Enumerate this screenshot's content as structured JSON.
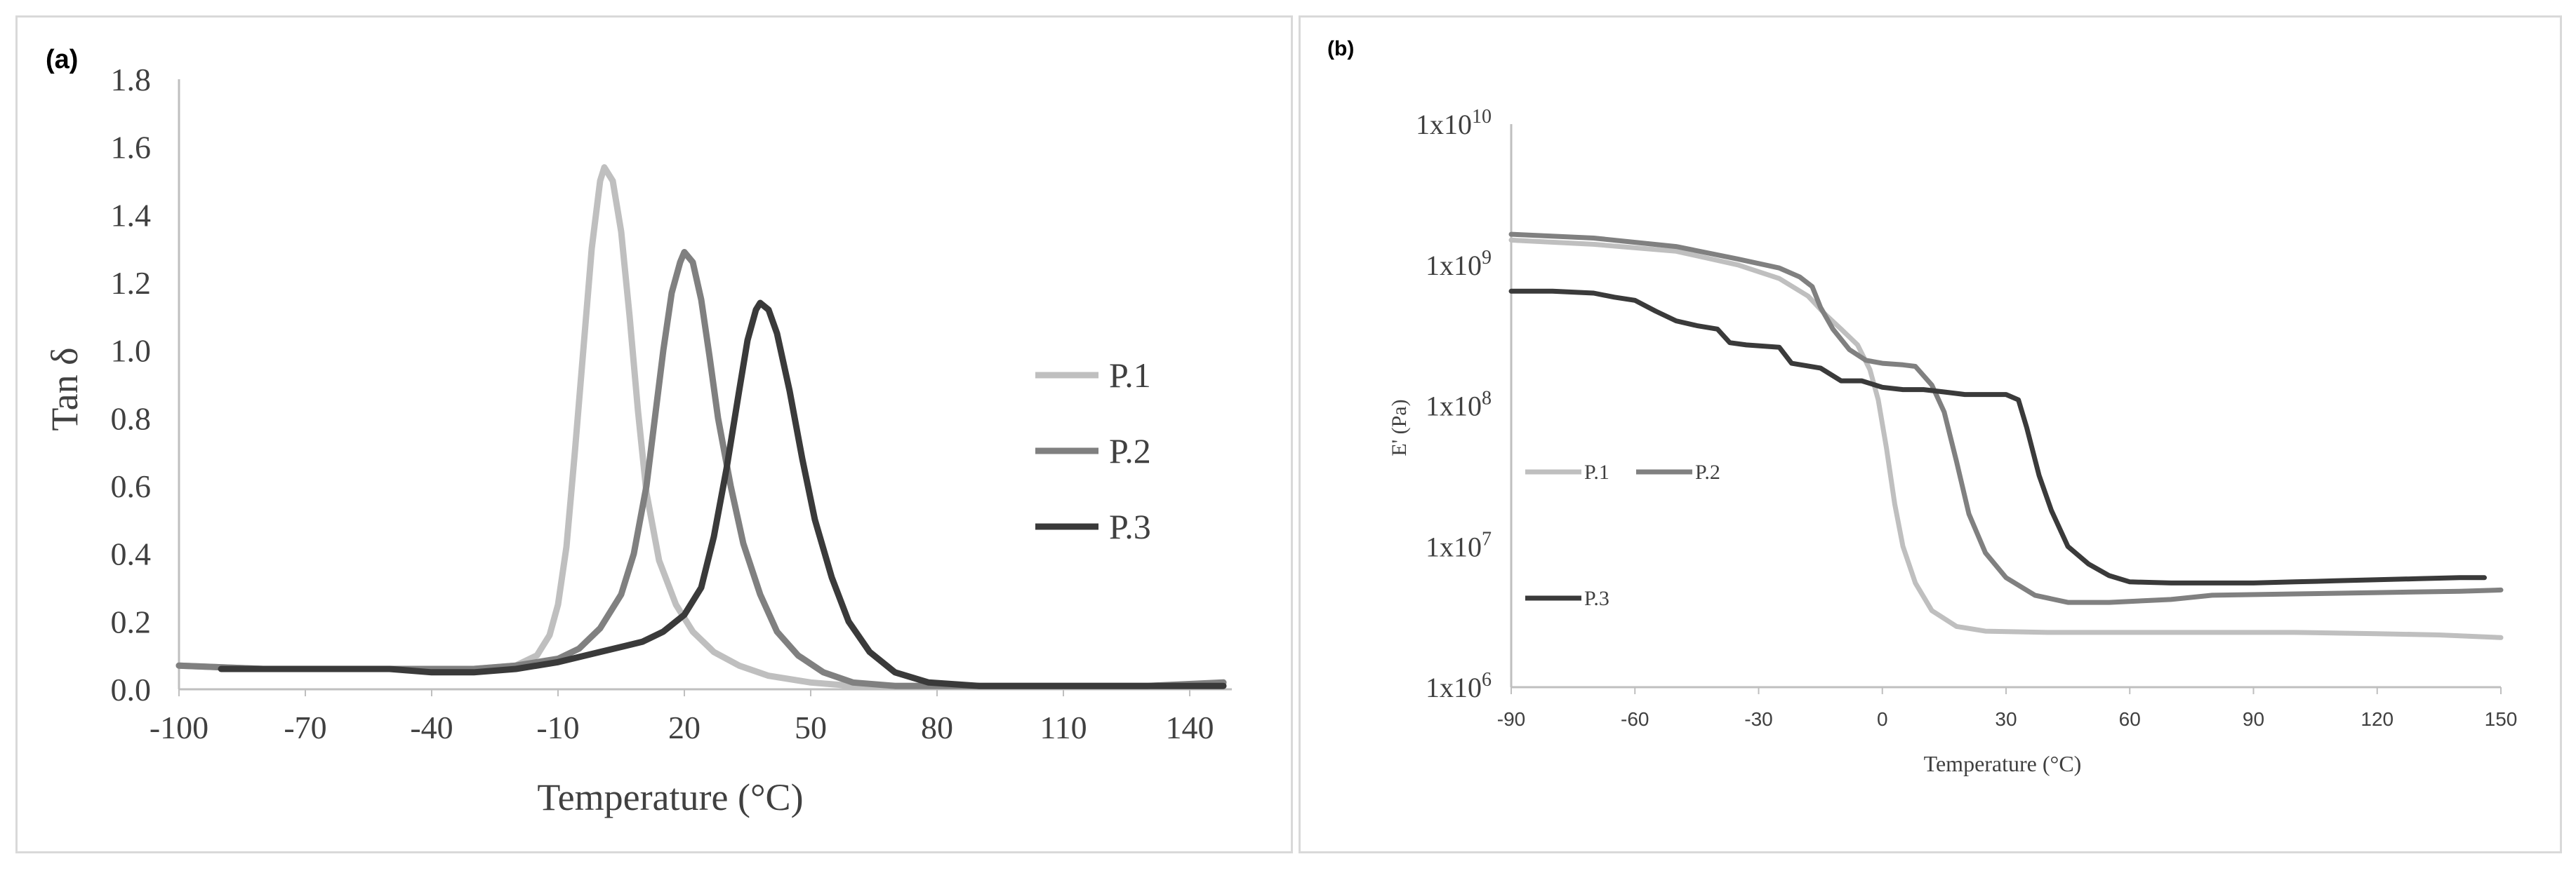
{
  "chart_data": [
    {
      "type": "line",
      "panel_label": "(a)",
      "xlabel": "Temperature (°C)",
      "ylabel": "Tan δ",
      "xlim": [
        -100,
        150
      ],
      "ylim": [
        0,
        1.8
      ],
      "x_ticks": [
        "-100",
        "-70",
        "-40",
        "-10",
        "20",
        "50",
        "80",
        "110",
        "140"
      ],
      "x_tick_values": [
        -100,
        -70,
        -40,
        -10,
        20,
        50,
        80,
        110,
        140
      ],
      "y_ticks": [
        "0.0",
        "0.2",
        "0.4",
        "0.6",
        "0.8",
        "1.0",
        "1.2",
        "1.4",
        "1.6",
        "1.8"
      ],
      "y_tick_values": [
        0,
        0.2,
        0.4,
        0.6,
        0.8,
        1.0,
        1.2,
        1.4,
        1.6,
        1.8
      ],
      "grid": false,
      "legend_position": "right",
      "series": [
        {
          "name": "P.1",
          "color": "#bfbfbf",
          "points": [
            [
              -100,
              0.07
            ],
            [
              -80,
              0.06
            ],
            [
              -60,
              0.06
            ],
            [
              -40,
              0.06
            ],
            [
              -30,
              0.06
            ],
            [
              -20,
              0.07
            ],
            [
              -15,
              0.1
            ],
            [
              -12,
              0.16
            ],
            [
              -10,
              0.25
            ],
            [
              -8,
              0.42
            ],
            [
              -6,
              0.7
            ],
            [
              -4,
              1.0
            ],
            [
              -2,
              1.3
            ],
            [
              0,
              1.5
            ],
            [
              1,
              1.54
            ],
            [
              3,
              1.5
            ],
            [
              5,
              1.35
            ],
            [
              7,
              1.1
            ],
            [
              9,
              0.82
            ],
            [
              11,
              0.58
            ],
            [
              14,
              0.38
            ],
            [
              18,
              0.25
            ],
            [
              22,
              0.17
            ],
            [
              27,
              0.11
            ],
            [
              33,
              0.07
            ],
            [
              40,
              0.04
            ],
            [
              50,
              0.02
            ],
            [
              60,
              0.01
            ],
            [
              80,
              0.01
            ],
            [
              100,
              0.01
            ],
            [
              120,
              0.01
            ],
            [
              140,
              0.01
            ],
            [
              148,
              0.02
            ]
          ]
        },
        {
          "name": "P.2",
          "color": "#808080",
          "points": [
            [
              -100,
              0.07
            ],
            [
              -80,
              0.06
            ],
            [
              -60,
              0.06
            ],
            [
              -40,
              0.06
            ],
            [
              -30,
              0.06
            ],
            [
              -20,
              0.07
            ],
            [
              -10,
              0.09
            ],
            [
              -5,
              0.12
            ],
            [
              0,
              0.18
            ],
            [
              5,
              0.28
            ],
            [
              8,
              0.4
            ],
            [
              11,
              0.6
            ],
            [
              13,
              0.8
            ],
            [
              15,
              1.0
            ],
            [
              17,
              1.17
            ],
            [
              19,
              1.26
            ],
            [
              20,
              1.29
            ],
            [
              22,
              1.26
            ],
            [
              24,
              1.15
            ],
            [
              26,
              0.98
            ],
            [
              28,
              0.8
            ],
            [
              31,
              0.6
            ],
            [
              34,
              0.43
            ],
            [
              38,
              0.28
            ],
            [
              42,
              0.17
            ],
            [
              47,
              0.1
            ],
            [
              53,
              0.05
            ],
            [
              60,
              0.02
            ],
            [
              70,
              0.01
            ],
            [
              90,
              0.01
            ],
            [
              110,
              0.01
            ],
            [
              130,
              0.01
            ],
            [
              148,
              0.02
            ]
          ]
        },
        {
          "name": "P.3",
          "color": "#3a3a3a",
          "points": [
            [
              -90,
              0.06
            ],
            [
              -70,
              0.06
            ],
            [
              -50,
              0.06
            ],
            [
              -40,
              0.05
            ],
            [
              -35,
              0.05
            ],
            [
              -30,
              0.05
            ],
            [
              -20,
              0.06
            ],
            [
              -10,
              0.08
            ],
            [
              0,
              0.11
            ],
            [
              10,
              0.14
            ],
            [
              15,
              0.17
            ],
            [
              20,
              0.22
            ],
            [
              24,
              0.3
            ],
            [
              27,
              0.45
            ],
            [
              30,
              0.65
            ],
            [
              33,
              0.88
            ],
            [
              35,
              1.03
            ],
            [
              37,
              1.12
            ],
            [
              38,
              1.14
            ],
            [
              40,
              1.12
            ],
            [
              42,
              1.05
            ],
            [
              45,
              0.88
            ],
            [
              48,
              0.68
            ],
            [
              51,
              0.5
            ],
            [
              55,
              0.33
            ],
            [
              59,
              0.2
            ],
            [
              64,
              0.11
            ],
            [
              70,
              0.05
            ],
            [
              78,
              0.02
            ],
            [
              90,
              0.01
            ],
            [
              110,
              0.01
            ],
            [
              130,
              0.01
            ],
            [
              148,
              0.01
            ]
          ]
        }
      ]
    },
    {
      "type": "line",
      "panel_label": "(b)",
      "xlabel": "Temperature (°C)",
      "ylabel": "E' (Pa)",
      "yscale": "log",
      "xlim": [
        -90,
        150
      ],
      "ylim": [
        1000000,
        10000000000
      ],
      "x_ticks": [
        "-90",
        "-60",
        "-30",
        "0",
        "30",
        "60",
        "90",
        "120",
        "150"
      ],
      "x_tick_values": [
        -90,
        -60,
        -30,
        0,
        30,
        60,
        90,
        120,
        150
      ],
      "y_ticks": [
        {
          "base": "1x10",
          "exp": "6",
          "value": 1000000
        },
        {
          "base": "1x10",
          "exp": "7",
          "value": 10000000
        },
        {
          "base": "1x10",
          "exp": "8",
          "value": 100000000
        },
        {
          "base": "1x10",
          "exp": "9",
          "value": 1000000000
        },
        {
          "base": "1x10",
          "exp": "10",
          "value": 10000000000
        }
      ],
      "grid": false,
      "legend_position": "left",
      "series": [
        {
          "name": "P.1",
          "color": "#bfbfbf",
          "points": [
            [
              -90,
              1500000000
            ],
            [
              -70,
              1400000000
            ],
            [
              -50,
              1250000000
            ],
            [
              -35,
              1000000000
            ],
            [
              -25,
              800000000
            ],
            [
              -18,
              600000000
            ],
            [
              -14,
              450000000
            ],
            [
              -10,
              350000000
            ],
            [
              -6,
              270000000
            ],
            [
              -3,
              180000000
            ],
            [
              -1,
              110000000
            ],
            [
              1,
              50000000
            ],
            [
              3,
              20000000
            ],
            [
              5,
              10000000
            ],
            [
              8,
              5500000
            ],
            [
              12,
              3500000
            ],
            [
              18,
              2700000
            ],
            [
              25,
              2500000
            ],
            [
              40,
              2450000
            ],
            [
              60,
              2450000
            ],
            [
              80,
              2450000
            ],
            [
              100,
              2450000
            ],
            [
              120,
              2400000
            ],
            [
              135,
              2350000
            ],
            [
              150,
              2250000
            ]
          ]
        },
        {
          "name": "P.2",
          "color": "#808080",
          "points": [
            [
              -90,
              1650000000
            ],
            [
              -70,
              1550000000
            ],
            [
              -50,
              1350000000
            ],
            [
              -35,
              1100000000
            ],
            [
              -25,
              950000000
            ],
            [
              -20,
              820000000
            ],
            [
              -17,
              700000000
            ],
            [
              -15,
              500000000
            ],
            [
              -12,
              350000000
            ],
            [
              -8,
              250000000
            ],
            [
              -4,
              210000000
            ],
            [
              0,
              200000000
            ],
            [
              5,
              195000000
            ],
            [
              8,
              190000000
            ],
            [
              12,
              140000000
            ],
            [
              15,
              90000000
            ],
            [
              18,
              40000000
            ],
            [
              21,
              17000000
            ],
            [
              25,
              9000000
            ],
            [
              30,
              6000000
            ],
            [
              37,
              4500000
            ],
            [
              45,
              4000000
            ],
            [
              55,
              4000000
            ],
            [
              70,
              4200000
            ],
            [
              80,
              4500000
            ],
            [
              100,
              4600000
            ],
            [
              120,
              4700000
            ],
            [
              140,
              4800000
            ],
            [
              150,
              4900000
            ]
          ]
        },
        {
          "name": "P.3",
          "color": "#3a3a3a",
          "points": [
            [
              -90,
              650000000
            ],
            [
              -80,
              650000000
            ],
            [
              -70,
              630000000
            ],
            [
              -65,
              590000000
            ],
            [
              -60,
              560000000
            ],
            [
              -55,
              470000000
            ],
            [
              -50,
              400000000
            ],
            [
              -45,
              370000000
            ],
            [
              -40,
              350000000
            ],
            [
              -37,
              280000000
            ],
            [
              -33,
              270000000
            ],
            [
              -25,
              260000000
            ],
            [
              -22,
              200000000
            ],
            [
              -15,
              185000000
            ],
            [
              -10,
              150000000
            ],
            [
              -5,
              150000000
            ],
            [
              0,
              135000000
            ],
            [
              5,
              130000000
            ],
            [
              10,
              130000000
            ],
            [
              15,
              125000000
            ],
            [
              20,
              120000000
            ],
            [
              25,
              120000000
            ],
            [
              30,
              120000000
            ],
            [
              33,
              110000000
            ],
            [
              35,
              70000000
            ],
            [
              38,
              32000000
            ],
            [
              41,
              18000000
            ],
            [
              45,
              10000000
            ],
            [
              50,
              7500000
            ],
            [
              55,
              6200000
            ],
            [
              60,
              5600000
            ],
            [
              70,
              5500000
            ],
            [
              80,
              5500000
            ],
            [
              90,
              5500000
            ],
            [
              100,
              5600000
            ],
            [
              110,
              5700000
            ],
            [
              120,
              5800000
            ],
            [
              130,
              5900000
            ],
            [
              140,
              6000000
            ],
            [
              146,
              6000000
            ]
          ]
        }
      ]
    }
  ]
}
